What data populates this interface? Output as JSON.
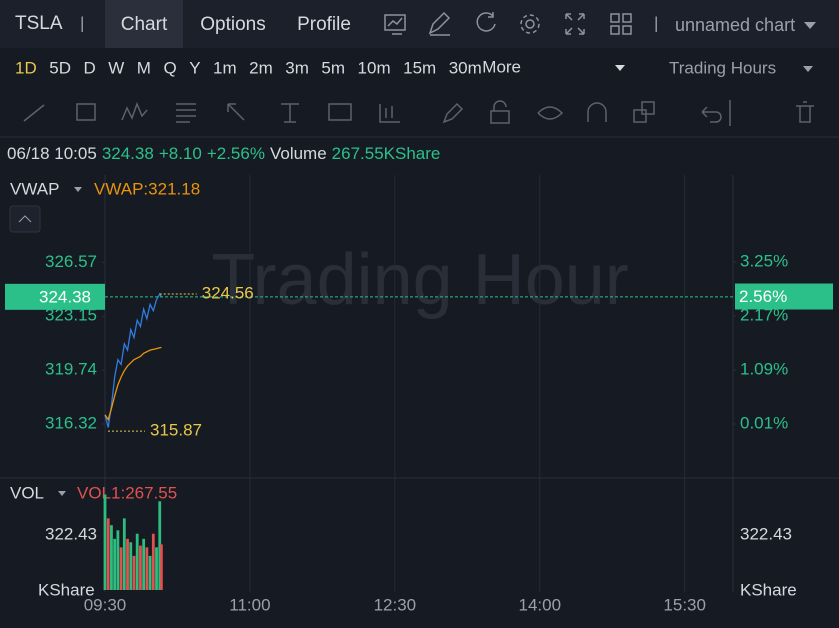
{
  "header": {
    "symbol": "TSLA",
    "tabs": [
      "Chart",
      "Options",
      "Profile"
    ],
    "chart_name": "unnamed chart"
  },
  "toolbar": {
    "timeframes": [
      "1D",
      "5D",
      "D",
      "W",
      "M",
      "Q",
      "Y",
      "1m",
      "2m",
      "3m",
      "5m",
      "10m",
      "15m",
      "30m"
    ],
    "more": "More",
    "session": "Trading Hours"
  },
  "status": {
    "datetime": "06/18 10:05",
    "price": "324.38",
    "change": "+8.10",
    "change_pct": "+2.56%",
    "volume_label": "Volume",
    "volume": "267.55KShare"
  },
  "chart_data": {
    "type": "line",
    "watermark": "Trading Hour",
    "indicator": "VWAP",
    "indicator_value": "VWAP:321.18",
    "x": [
      "09:30",
      "09:32",
      "09:34",
      "09:36",
      "09:38",
      "09:40",
      "09:42",
      "09:44",
      "09:46",
      "09:48",
      "09:50",
      "09:52",
      "09:54",
      "09:56",
      "09:58",
      "10:00",
      "10:02",
      "10:04",
      "10:05"
    ],
    "series": [
      {
        "color": "#2f7de1",
        "values": [
          316.9,
          316.1,
          317.5,
          319.3,
          320.4,
          320.1,
          321.4,
          321.0,
          322.3,
          321.8,
          322.9,
          322.5,
          323.6,
          323.0,
          323.9,
          323.5,
          324.2,
          324.56,
          324.38
        ]
      },
      {
        "name": "VWAP",
        "color": "#e8940c",
        "values": [
          316.9,
          316.6,
          317.3,
          318.1,
          318.8,
          319.3,
          319.7,
          320.0,
          320.2,
          320.4,
          320.5,
          320.6,
          320.8,
          320.9,
          321.0,
          321.05,
          321.1,
          321.15,
          321.18
        ]
      }
    ],
    "xlim": [
      "09:30",
      "16:00"
    ],
    "xticks": [
      "09:30",
      "11:00",
      "12:30",
      "14:00",
      "15:30"
    ],
    "grid": true,
    "ylim": [
      312.9,
      332.1
    ],
    "yticks": [
      326.57,
      323.15,
      319.74,
      316.32
    ],
    "y2lim": [
      -1.07,
      4.99
    ],
    "y2ticks": [
      {
        "value": 3.25,
        "label": "3.25%"
      },
      {
        "value": 2.17,
        "label": "2.17%"
      },
      {
        "value": 1.09,
        "label": "1.09%"
      },
      {
        "value": 0.01,
        "label": "0.01%"
      }
    ],
    "last_price": 324.38,
    "last_change": {
      "value": 2.56,
      "label": "2.56%"
    },
    "high": 324.56,
    "low": 315.87,
    "volume": {
      "label": "VOL",
      "indicator_value": "VOL1:267.55",
      "unit": "KShare",
      "ylim": [
        0,
        656.6
      ],
      "yticks": [
        322.43
      ],
      "values": [
        560,
        420,
        380,
        300,
        350,
        250,
        420,
        300,
        280,
        200,
        330,
        260,
        300,
        250,
        200,
        330,
        250,
        520,
        267.55
      ],
      "colors": [
        "#2dbd7e",
        "#e0524f",
        "#2dbd7e",
        "#2dbd7e",
        "#2dbd7e",
        "#e0524f",
        "#2dbd7e",
        "#e0524f",
        "#2dbd7e",
        "#e0524f",
        "#2dbd7e",
        "#e0524f",
        "#2dbd7e",
        "#e0524f",
        "#2dbd7e",
        "#e0524f",
        "#2dbd7e",
        "#2dbd7e",
        "#e0524f"
      ]
    }
  }
}
